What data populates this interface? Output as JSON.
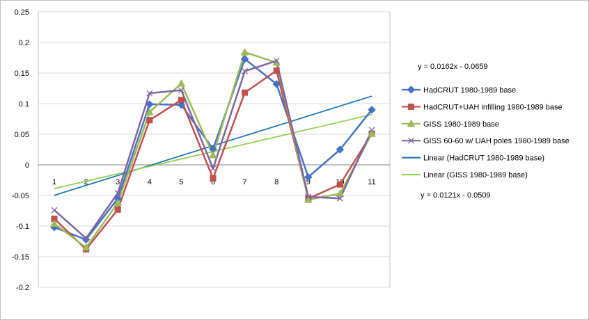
{
  "chart_data": {
    "type": "line",
    "x": [
      1,
      2,
      3,
      4,
      5,
      6,
      7,
      8,
      9,
      10,
      11
    ],
    "ylim": [
      -0.2,
      0.25
    ],
    "yticks": [
      "0.25",
      "0.2",
      "0.15",
      "0.1",
      "0.05",
      "0",
      "-0.05",
      "-0.1",
      "-0.15",
      "-0.2"
    ],
    "ytick_values": [
      0.25,
      0.2,
      0.15,
      0.1,
      0.05,
      0,
      -0.05,
      -0.1,
      -0.15,
      -0.2
    ],
    "xticks": [
      "1",
      "2",
      "3",
      "4",
      "5",
      "6",
      "7",
      "8",
      "9",
      "10",
      "11"
    ],
    "grid": true,
    "legend_position": "right",
    "series": [
      {
        "name": "HadCRUT 1980-1989 base",
        "color": "#4472C4",
        "marker": "diamond",
        "values": [
          -0.102,
          -0.122,
          -0.055,
          0.099,
          0.098,
          0.026,
          0.173,
          0.132,
          -0.02,
          0.025,
          0.09
        ]
      },
      {
        "name": "HadCRUT+UAH infilling 1980-1989 base",
        "color": "#C0504D",
        "marker": "square",
        "values": [
          -0.088,
          -0.138,
          -0.073,
          0.073,
          0.106,
          -0.022,
          0.118,
          0.154,
          -0.055,
          -0.032,
          0.051
        ]
      },
      {
        "name": "GISS 1980-1989 base",
        "color": "#9BBB59",
        "marker": "triangle",
        "values": [
          -0.096,
          -0.135,
          -0.062,
          0.086,
          0.133,
          0.016,
          0.184,
          0.167,
          -0.057,
          -0.047,
          0.051
        ]
      },
      {
        "name": "GISS 60-60 w/ UAH poles 1980-1989 base",
        "color": "#8064A2",
        "marker": "x",
        "values": [
          -0.074,
          -0.12,
          -0.046,
          0.117,
          0.122,
          -0.006,
          0.153,
          0.17,
          -0.052,
          -0.055,
          0.057
        ]
      }
    ],
    "trendlines": [
      {
        "name": "Linear (HadCRUT 1980-1989 base)",
        "color": "#1F77B4",
        "slope": 0.0162,
        "intercept": -0.0659,
        "equation": "y = 0.0162x - 0.0659"
      },
      {
        "name": "Linear (GISS 1980-1989 base)",
        "color": "#92D050",
        "slope": 0.0121,
        "intercept": -0.0509,
        "equation": "y = 0.0121x - 0.0509"
      }
    ]
  }
}
